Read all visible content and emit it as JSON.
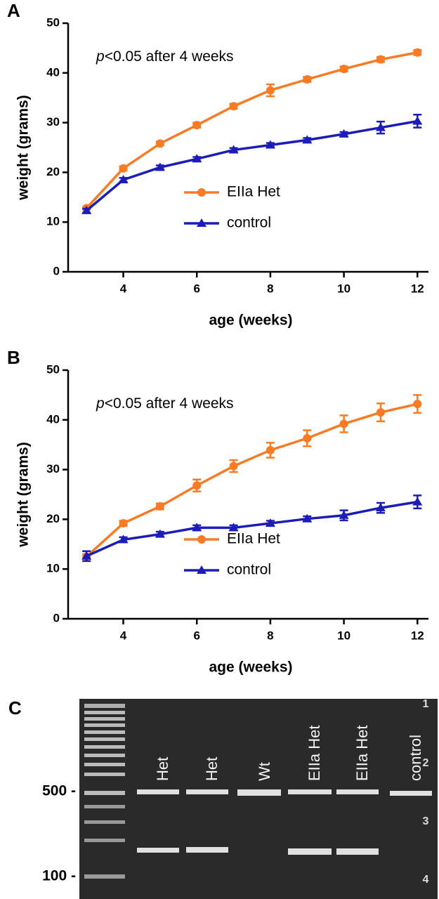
{
  "chart_data": [
    {
      "type": "line",
      "panel": "A",
      "annotation": [
        "p",
        "<0.05 after 4 weeks"
      ],
      "x_label": "age (weeks)",
      "y_label": "weight (grams)",
      "x": [
        3,
        4,
        5,
        6,
        7,
        8,
        9,
        10,
        11,
        12
      ],
      "series": [
        {
          "name": "EIIa Het",
          "color": "#f97b25",
          "marker": "circle",
          "values": [
            12.8,
            20.8,
            25.8,
            29.5,
            33.3,
            36.5,
            38.7,
            40.8,
            42.7,
            44.1
          ],
          "errors": [
            0.3,
            0.4,
            0.4,
            0.5,
            0.5,
            1.2,
            0.5,
            0.5,
            0.5,
            0.5
          ]
        },
        {
          "name": "control",
          "color": "#1c1cb8",
          "marker": "triangle",
          "values": [
            12.3,
            18.5,
            21.0,
            22.7,
            24.5,
            25.5,
            26.5,
            27.7,
            29.0,
            30.3
          ],
          "errors": [
            0.4,
            0.4,
            0.4,
            0.4,
            0.4,
            0.4,
            0.4,
            0.4,
            1.2,
            1.3
          ]
        }
      ],
      "xlim": [
        2.5,
        12.3
      ],
      "xticks": [
        4,
        6,
        8,
        10,
        12
      ],
      "ylim": [
        0,
        50
      ],
      "yticks": [
        0,
        10,
        20,
        30,
        40,
        50
      ],
      "legend": "center"
    },
    {
      "type": "line",
      "panel": "B",
      "annotation": [
        "p",
        "<0.05 after 4 weeks"
      ],
      "x_label": "age (weeks)",
      "y_label": "weight (grams)",
      "x": [
        3,
        4,
        5,
        6,
        7,
        8,
        9,
        10,
        11,
        12
      ],
      "series": [
        {
          "name": "EIIa Het",
          "color": "#f97b25",
          "marker": "circle",
          "values": [
            12.5,
            19.2,
            22.6,
            26.8,
            30.7,
            33.9,
            36.3,
            39.2,
            41.5,
            43.2
          ],
          "errors": [
            0.5,
            0.5,
            0.6,
            1.2,
            1.2,
            1.5,
            1.6,
            1.7,
            1.8,
            1.8
          ]
        },
        {
          "name": "control",
          "color": "#1c1cb8",
          "marker": "triangle",
          "values": [
            12.6,
            15.9,
            17.0,
            18.3,
            18.3,
            19.2,
            20.1,
            20.8,
            22.3,
            23.5
          ],
          "errors": [
            1.0,
            0.5,
            0.5,
            0.5,
            0.5,
            0.5,
            0.5,
            1.0,
            1.0,
            1.3
          ]
        }
      ],
      "xlim": [
        2.5,
        12.3
      ],
      "xticks": [
        4,
        6,
        8,
        10,
        12
      ],
      "ylim": [
        0,
        50
      ],
      "yticks": [
        0,
        10,
        20,
        30,
        40,
        50
      ],
      "legend": "center"
    }
  ],
  "gel": {
    "panel": "C",
    "lanes": [
      "Het",
      "Het",
      "Wt",
      "EIIa Het",
      "EIIa Het",
      "control"
    ],
    "ladder_labels": [
      "500 -",
      "100 -"
    ],
    "edge_marks": [
      "1",
      "2",
      "3",
      "4"
    ]
  }
}
